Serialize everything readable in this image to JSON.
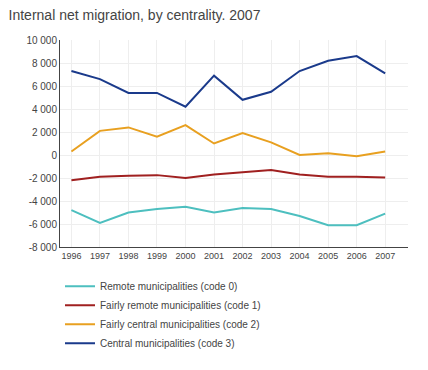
{
  "chart_data": {
    "type": "line",
    "title": "Internal net migration, by centrality. 2007",
    "x": [
      1996,
      1997,
      1998,
      1999,
      2000,
      2001,
      2002,
      2003,
      2004,
      2005,
      2006,
      2007
    ],
    "series": [
      {
        "name": "Remote municipalities (code 0)",
        "color": "#4DBFBF",
        "values": [
          -4800,
          -5900,
          -5000,
          -4700,
          -4500,
          -5000,
          -4600,
          -4700,
          -5300,
          -6100,
          -6100,
          -5100
        ]
      },
      {
        "name": "Fairly remote municipalities (code 1)",
        "color": "#A02020",
        "values": [
          -2200,
          -1900,
          -1800,
          -1750,
          -2000,
          -1700,
          -1500,
          -1300,
          -1700,
          -1900,
          -1900,
          -1950
        ]
      },
      {
        "name": "Fairly central municipalities (code 2)",
        "color": "#E8A020",
        "values": [
          300,
          2100,
          2400,
          1600,
          2600,
          1000,
          1900,
          1100,
          0,
          150,
          -100,
          300
        ]
      },
      {
        "name": "Central municipalities (code 3)",
        "color": "#1A3A8B",
        "values": [
          7300,
          6600,
          5400,
          5400,
          4200,
          6900,
          4800,
          5500,
          7300,
          8200,
          8600,
          7100
        ]
      }
    ],
    "xlim": [
      1995.6,
      2007.8
    ],
    "xticks": [
      1996,
      1997,
      1998,
      1999,
      2000,
      2001,
      2002,
      2003,
      2004,
      2005,
      2006,
      2007
    ],
    "ylim": [
      -8000,
      10000
    ],
    "yticks": [
      {
        "value": -8000,
        "label": "-8 000"
      },
      {
        "value": -6000,
        "label": "-6 000"
      },
      {
        "value": -4000,
        "label": "-4 000"
      },
      {
        "value": -2000,
        "label": "-2 000"
      },
      0,
      {
        "value": 2000,
        "label": "2 000"
      },
      {
        "value": 4000,
        "label": "4 000"
      },
      {
        "value": 6000,
        "label": "6 000"
      },
      {
        "value": 8000,
        "label": "8 000"
      },
      {
        "value": 10000,
        "label": "10 000"
      }
    ],
    "grid": true,
    "legend": "bottom"
  }
}
